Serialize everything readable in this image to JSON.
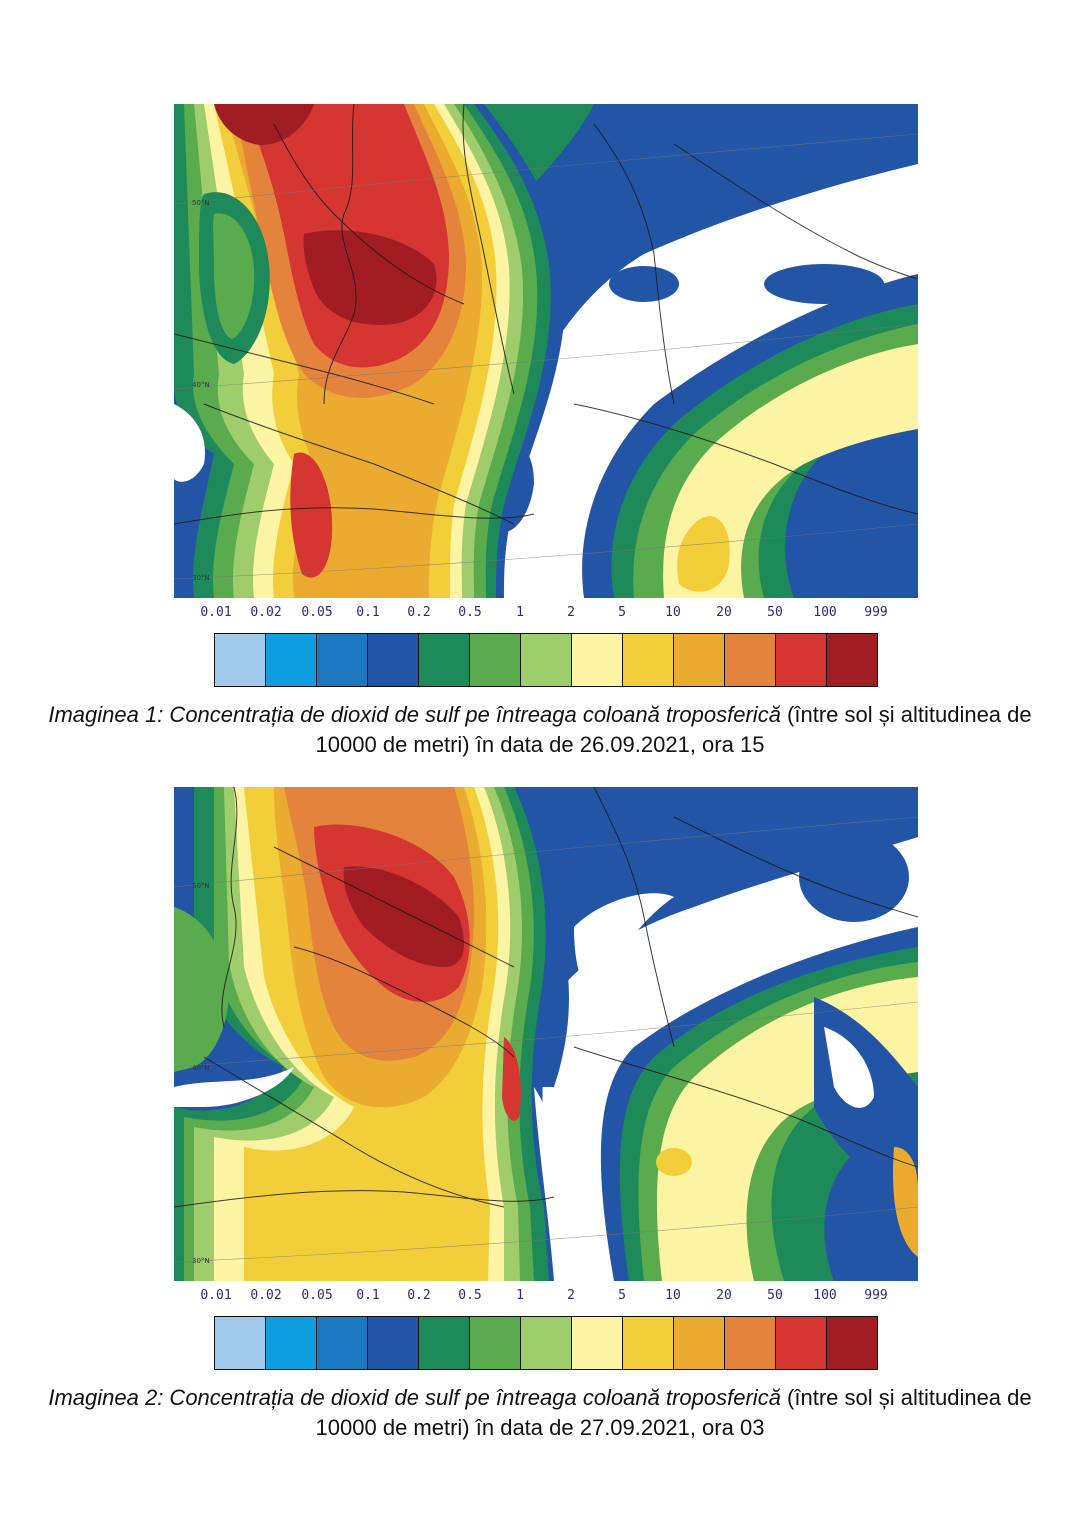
{
  "legend_ticks": [
    "0.01",
    "0.02",
    "0.05",
    "0.1",
    "0.2",
    "0.5",
    "1",
    "2",
    "5",
    "10",
    "20",
    "50",
    "100",
    "999"
  ],
  "legend_colors": [
    "#9ec9e9",
    "#0f9fe0",
    "#1b78c1",
    "#2355a6",
    "#1e8a5a",
    "#5aab4e",
    "#a0cd6c",
    "#fcf3a3",
    "#f2cf3a",
    "#eaab30",
    "#e4843c",
    "#d53631",
    "#a11d23"
  ],
  "lat_labels": [
    "50°N",
    "40°N",
    "30°N"
  ],
  "figures": [
    {
      "caption_lead": "Imaginea 1: Concentrația de dioxid de sulf pe întreaga coloană troposferică",
      "caption_rest": " (între sol și altitudinea de 10000 de metri) în data de 26.09.2021, ora 15"
    },
    {
      "caption_lead": "Imaginea 2: Concentrația de dioxid de sulf pe întreaga coloană troposferică",
      "caption_rest": " (între sol și altitudinea de 10000 de metri) în data de 27.09.2021, ora 03"
    }
  ]
}
